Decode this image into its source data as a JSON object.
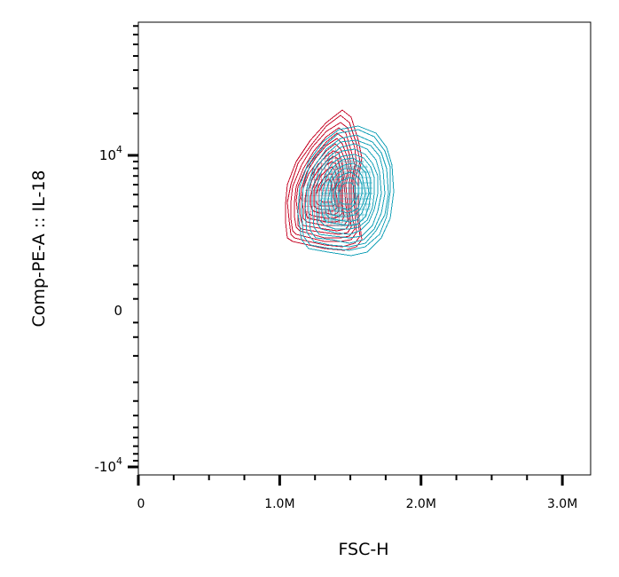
{
  "chart_data": {
    "type": "contour",
    "title": "",
    "xlabel": "FSC-H",
    "ylabel": "Comp-PE-A :: IL-18",
    "x_scale": "linear",
    "y_scale": "biexponential",
    "xlim": [
      0,
      3200000
    ],
    "ylim": [
      -12000,
      100000
    ],
    "x_ticks": [
      {
        "value": 0,
        "label": "0"
      },
      {
        "value": 1000000,
        "label": "1.0M"
      },
      {
        "value": 2000000,
        "label": "2.0M"
      },
      {
        "value": 3000000,
        "label": "3.0M"
      }
    ],
    "y_ticks": [
      {
        "value": -10000,
        "label": "-10",
        "exp": "4"
      },
      {
        "value": 0,
        "label": "0",
        "exp": ""
      },
      {
        "value": 10000,
        "label": "10",
        "exp": "4"
      }
    ],
    "grid": false,
    "legend": "none",
    "series": [
      {
        "color": "#c8102e",
        "levels": 13,
        "outer_contour": [
          [
            1060000,
            2100
          ],
          [
            1090000,
            1900
          ],
          [
            1200000,
            1750
          ],
          [
            1320000,
            1600
          ],
          [
            1450000,
            1550
          ],
          [
            1540000,
            1650
          ],
          [
            1580000,
            2000
          ],
          [
            1560000,
            3500
          ],
          [
            1550000,
            6500
          ],
          [
            1580000,
            9500
          ],
          [
            1560000,
            13000
          ],
          [
            1500000,
            19000
          ],
          [
            1440000,
            21000
          ],
          [
            1330000,
            17500
          ],
          [
            1220000,
            13000
          ],
          [
            1120000,
            9000
          ],
          [
            1060000,
            6000
          ],
          [
            1040000,
            4200
          ],
          [
            1045000,
            2900
          ]
        ]
      },
      {
        "color": "#17a2b8",
        "levels": 13,
        "outer_contour": [
          [
            1150000,
            2000
          ],
          [
            1200000,
            1600
          ],
          [
            1340000,
            1450
          ],
          [
            1500000,
            1350
          ],
          [
            1620000,
            1500
          ],
          [
            1720000,
            2100
          ],
          [
            1780000,
            3200
          ],
          [
            1810000,
            5200
          ],
          [
            1800000,
            8500
          ],
          [
            1760000,
            11500
          ],
          [
            1680000,
            14500
          ],
          [
            1560000,
            16500
          ],
          [
            1420000,
            15500
          ],
          [
            1300000,
            12500
          ],
          [
            1200000,
            9000
          ],
          [
            1140000,
            5800
          ],
          [
            1130000,
            3500
          ]
        ]
      }
    ]
  }
}
